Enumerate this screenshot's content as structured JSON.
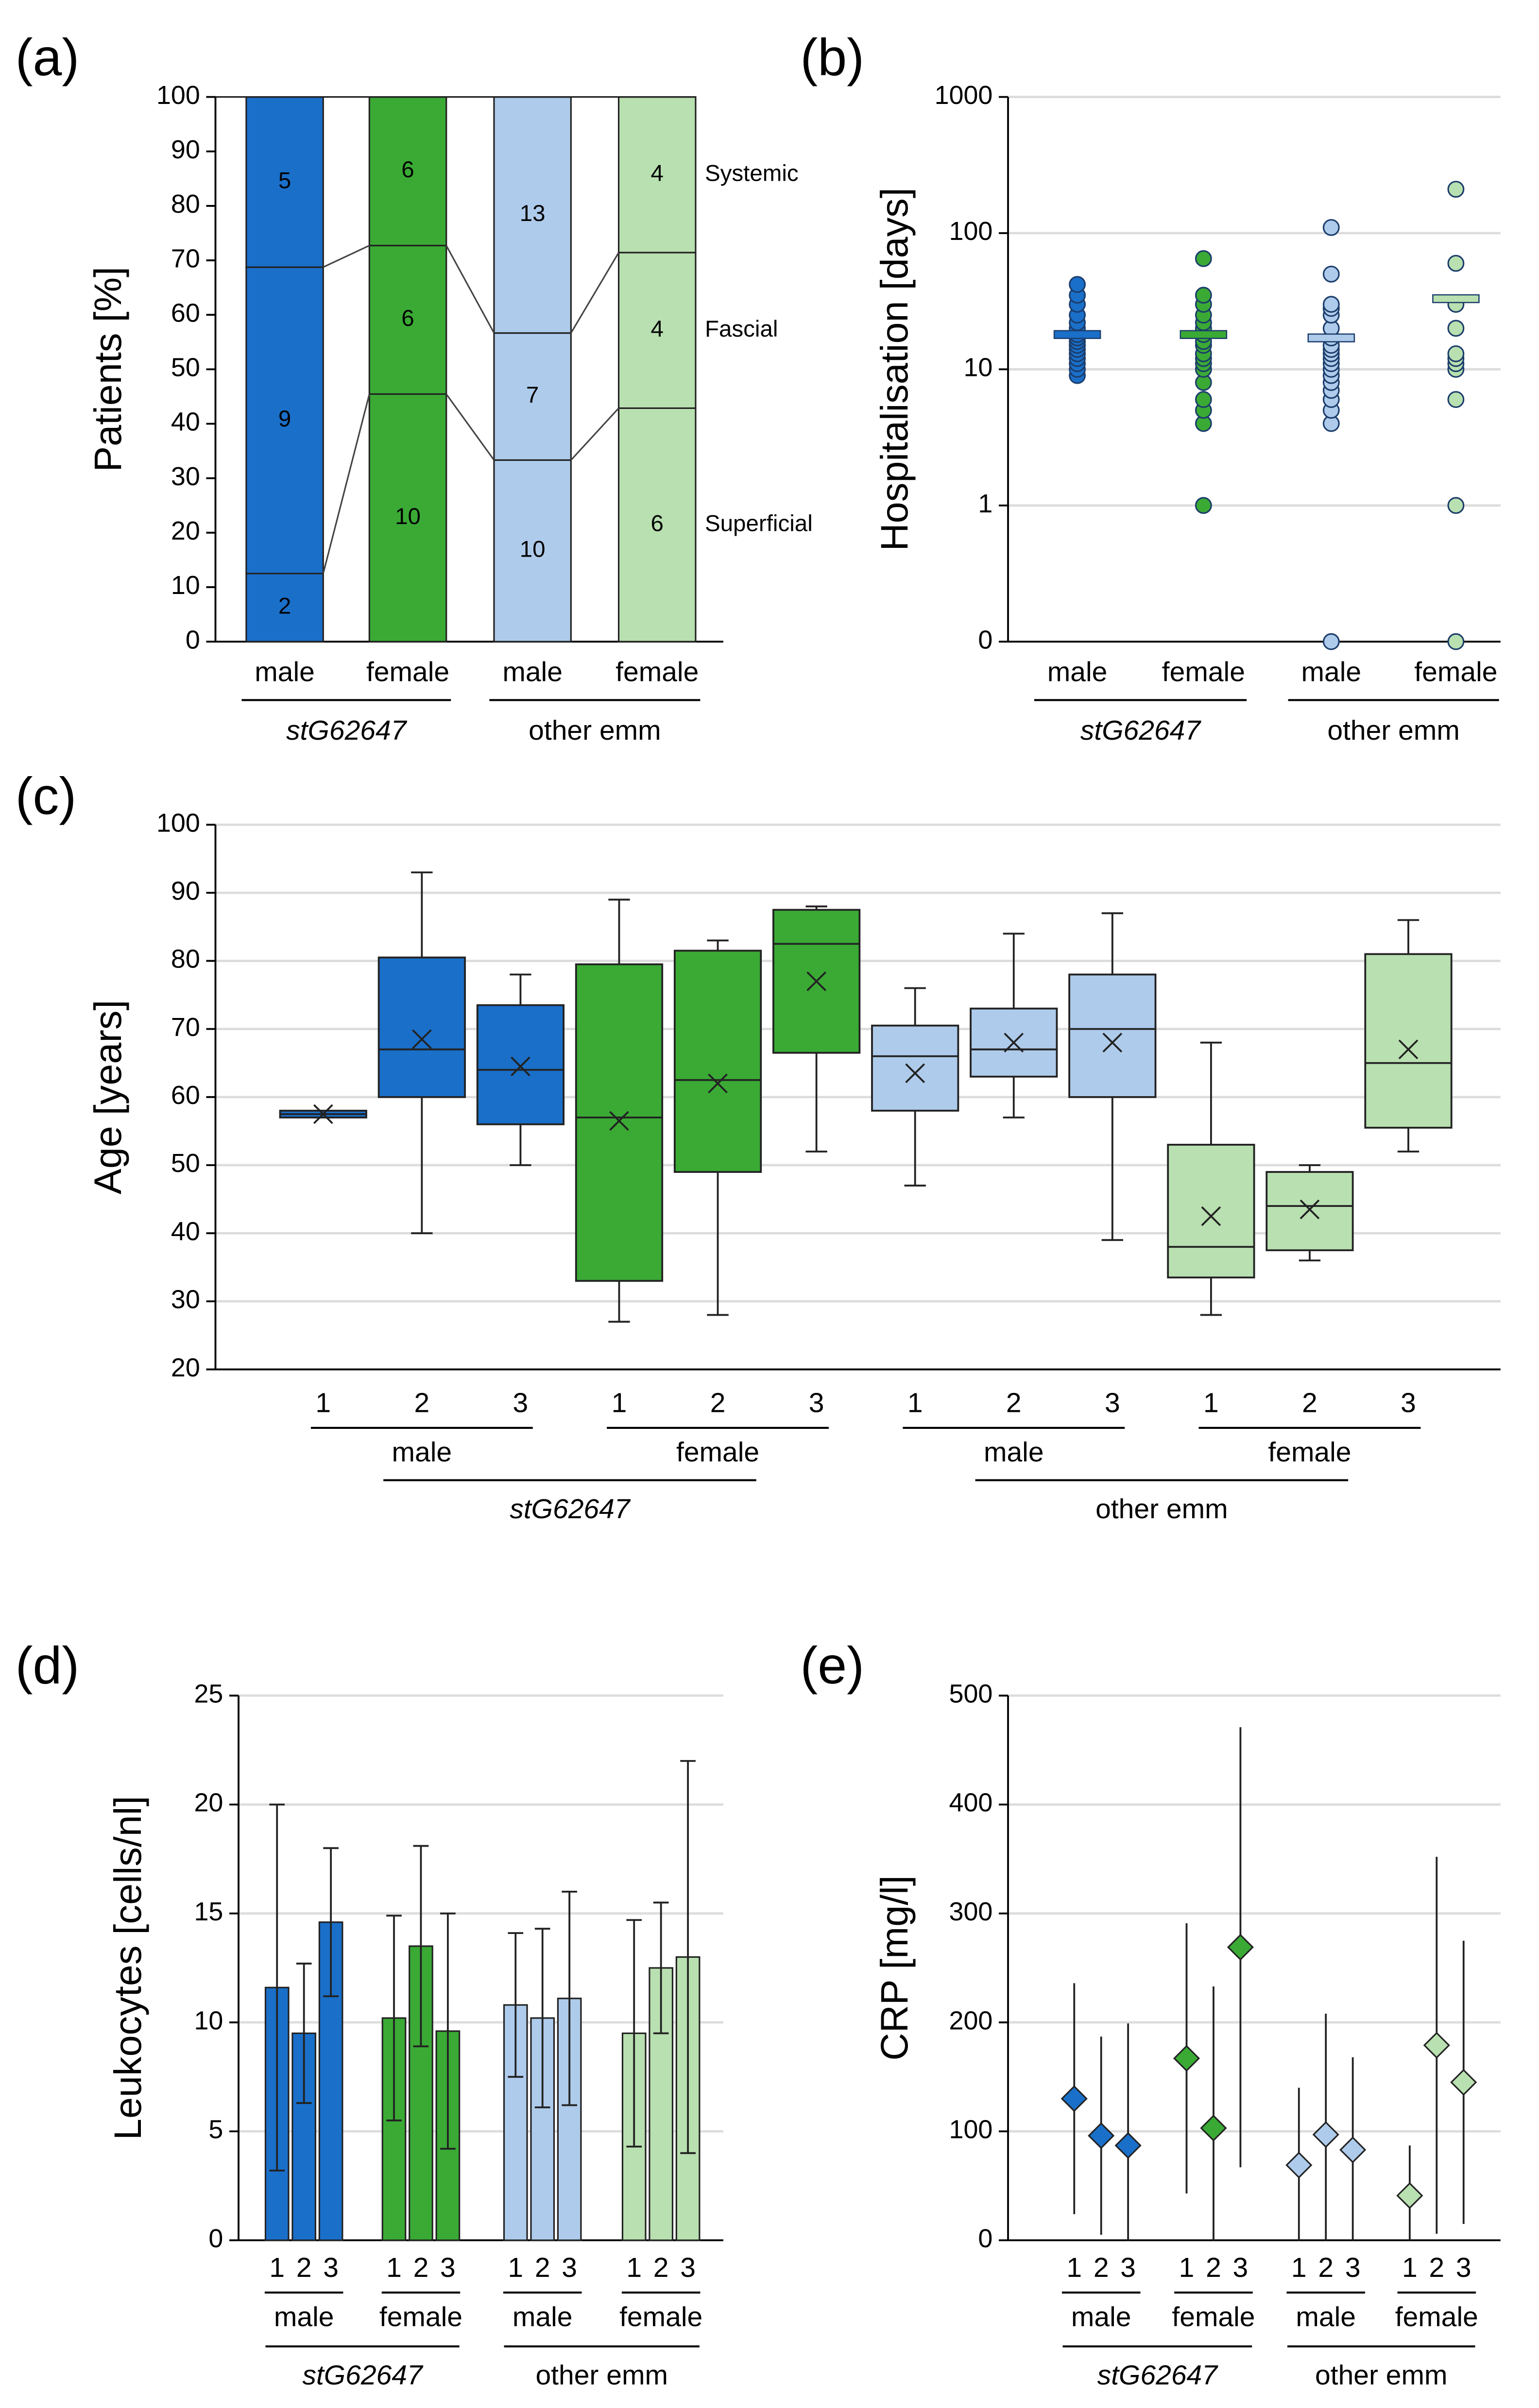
{
  "chart_data": [
    {
      "type": "bar",
      "stacked": true,
      "panel_label": "(a)",
      "ylabel": "Patients [%]",
      "categories": [
        "male",
        "female",
        "male",
        "female"
      ],
      "groups": [
        "stG62647",
        "other emm"
      ],
      "group_colors": [
        "#e8141b",
        "#000000"
      ],
      "colors": [
        "#1a6fc9",
        "#3aaa35",
        "#aecbeb",
        "#b9e0b0"
      ],
      "series": [
        {
          "name": "Superficial",
          "values": [
            12.5,
            45.45,
            33.33,
            42.86
          ],
          "counts": [
            2,
            10,
            10,
            6
          ]
        },
        {
          "name": "Fascial",
          "values": [
            56.25,
            27.27,
            23.33,
            28.57
          ],
          "counts": [
            9,
            6,
            7,
            4
          ]
        },
        {
          "name": "Systemic",
          "values": [
            31.25,
            27.27,
            43.33,
            28.57
          ],
          "counts": [
            5,
            6,
            13,
            4
          ]
        }
      ],
      "ylim": [
        0,
        100
      ],
      "yticks": [
        0,
        10,
        20,
        30,
        40,
        50,
        60,
        70,
        80,
        90,
        100
      ],
      "grid": false
    },
    {
      "type": "scatter",
      "panel_label": "(b)",
      "ylabel": "Hospitalisation [days]",
      "log_y": true,
      "categories": [
        "male",
        "female",
        "male",
        "female"
      ],
      "groups": [
        "stG62647",
        "other emm"
      ],
      "group_colors": [
        "#e8141b",
        "#000000"
      ],
      "colors": [
        "#1a6fc9",
        "#3aaa35",
        "#aecbeb",
        "#b9e0b0"
      ],
      "values": [
        [
          9,
          10,
          11,
          12,
          13,
          14,
          15,
          16,
          17,
          18,
          20,
          22,
          25,
          30,
          35,
          42
        ],
        [
          1,
          4,
          5,
          6,
          8,
          10,
          11,
          12,
          13,
          15,
          16,
          18,
          20,
          22,
          25,
          30,
          35,
          65
        ],
        [
          0.1,
          4,
          5,
          6,
          7,
          8,
          9,
          10,
          11,
          12,
          13,
          14,
          15,
          17,
          20,
          25,
          28,
          30,
          50,
          110
        ],
        [
          0.1,
          1,
          6,
          10,
          11,
          12,
          13,
          20,
          30,
          60,
          210
        ]
      ],
      "means": [
        18,
        18,
        17,
        33
      ],
      "ylim": [
        0.1,
        1000
      ],
      "yticks": [
        {
          "value": 0.1,
          "label": "0"
        },
        1,
        10,
        100,
        1000
      ],
      "grid": true
    },
    {
      "type": "box",
      "panel_label": "(c)",
      "ylabel": "Age [years]",
      "categories": [
        "1",
        "2",
        "3",
        "1",
        "2",
        "3",
        "1",
        "2",
        "3",
        "1",
        "2",
        "3"
      ],
      "subgroups": [
        "male",
        "female",
        "male",
        "female"
      ],
      "groups": [
        "stG62647",
        "other emm"
      ],
      "group_colors": [
        "#e8141b",
        "#000000"
      ],
      "colors": [
        "#1a6fc9",
        "#1a6fc9",
        "#1a6fc9",
        "#3aaa35",
        "#3aaa35",
        "#3aaa35",
        "#aecbeb",
        "#aecbeb",
        "#aecbeb",
        "#b9e0b0",
        "#b9e0b0",
        "#b9e0b0"
      ],
      "min": [
        57,
        40,
        50,
        27,
        28,
        52,
        47,
        57,
        39,
        28,
        36,
        52
      ],
      "q1": [
        57,
        60,
        56,
        33,
        49,
        66.5,
        58,
        63,
        60,
        33.5,
        37.5,
        55.5
      ],
      "median": [
        57.5,
        67,
        64,
        57,
        62.5,
        82.5,
        66,
        67,
        70,
        38,
        44,
        65
      ],
      "q3": [
        58,
        80.5,
        73.5,
        79.5,
        81.5,
        87.5,
        70.5,
        73,
        78,
        53,
        49,
        81
      ],
      "max": [
        58,
        93,
        78,
        89,
        83,
        88,
        76,
        84,
        87,
        68,
        50,
        86
      ],
      "mean": [
        57.5,
        68.5,
        64.5,
        56.5,
        62,
        77,
        63.5,
        68,
        68,
        42.5,
        43.5,
        67
      ],
      "ylim": [
        20,
        100
      ],
      "yticks": [
        20,
        30,
        40,
        50,
        60,
        70,
        80,
        90,
        100
      ],
      "grid": true
    },
    {
      "type": "bar",
      "panel_label": "(d)",
      "ylabel": "Leukocytes [cells/nl]",
      "categories": [
        "1",
        "2",
        "3",
        "1",
        "2",
        "3",
        "1",
        "2",
        "3",
        "1",
        "2",
        "3"
      ],
      "subgroups": [
        "male",
        "female",
        "male",
        "female"
      ],
      "groups": [
        "stG62647",
        "other emm"
      ],
      "group_colors": [
        "#e8141b",
        "#000000"
      ],
      "colors": [
        "#1a6fc9",
        "#1a6fc9",
        "#1a6fc9",
        "#3aaa35",
        "#3aaa35",
        "#3aaa35",
        "#aecbeb",
        "#aecbeb",
        "#aecbeb",
        "#b9e0b0",
        "#b9e0b0",
        "#b9e0b0"
      ],
      "values": [
        11.6,
        9.5,
        14.6,
        10.2,
        13.5,
        9.6,
        10.8,
        10.2,
        11.1,
        9.5,
        12.5,
        13.0
      ],
      "errors": [
        8.4,
        3.2,
        3.4,
        4.7,
        4.6,
        5.4,
        3.3,
        4.1,
        4.9,
        5.2,
        3.0,
        9.0
      ],
      "ylim": [
        0,
        25
      ],
      "yticks": [
        0,
        5,
        10,
        15,
        20,
        25
      ],
      "grid": true
    },
    {
      "type": "scatter",
      "marker": "diamond",
      "panel_label": "(e)",
      "ylabel": "CRP [mg/l]",
      "categories": [
        "1",
        "2",
        "3",
        "1",
        "2",
        "3",
        "1",
        "2",
        "3",
        "1",
        "2",
        "3"
      ],
      "subgroups": [
        "male",
        "female",
        "male",
        "female"
      ],
      "groups": [
        "stG62647",
        "other emm"
      ],
      "group_colors": [
        "#e8141b",
        "#000000"
      ],
      "colors": [
        "#1a6fc9",
        "#1a6fc9",
        "#1a6fc9",
        "#3aaa35",
        "#3aaa35",
        "#3aaa35",
        "#aecbeb",
        "#aecbeb",
        "#aecbeb",
        "#b9e0b0",
        "#b9e0b0",
        "#b9e0b0"
      ],
      "values": [
        130,
        96,
        87,
        167,
        103,
        269,
        69,
        97,
        83,
        41,
        179,
        145
      ],
      "errors": [
        106,
        91,
        112,
        124,
        130,
        202,
        71,
        111,
        85,
        46,
        173,
        130
      ],
      "ylim": [
        0,
        500
      ],
      "yticks": [
        0,
        100,
        200,
        300,
        400,
        500
      ],
      "grid": true
    }
  ]
}
